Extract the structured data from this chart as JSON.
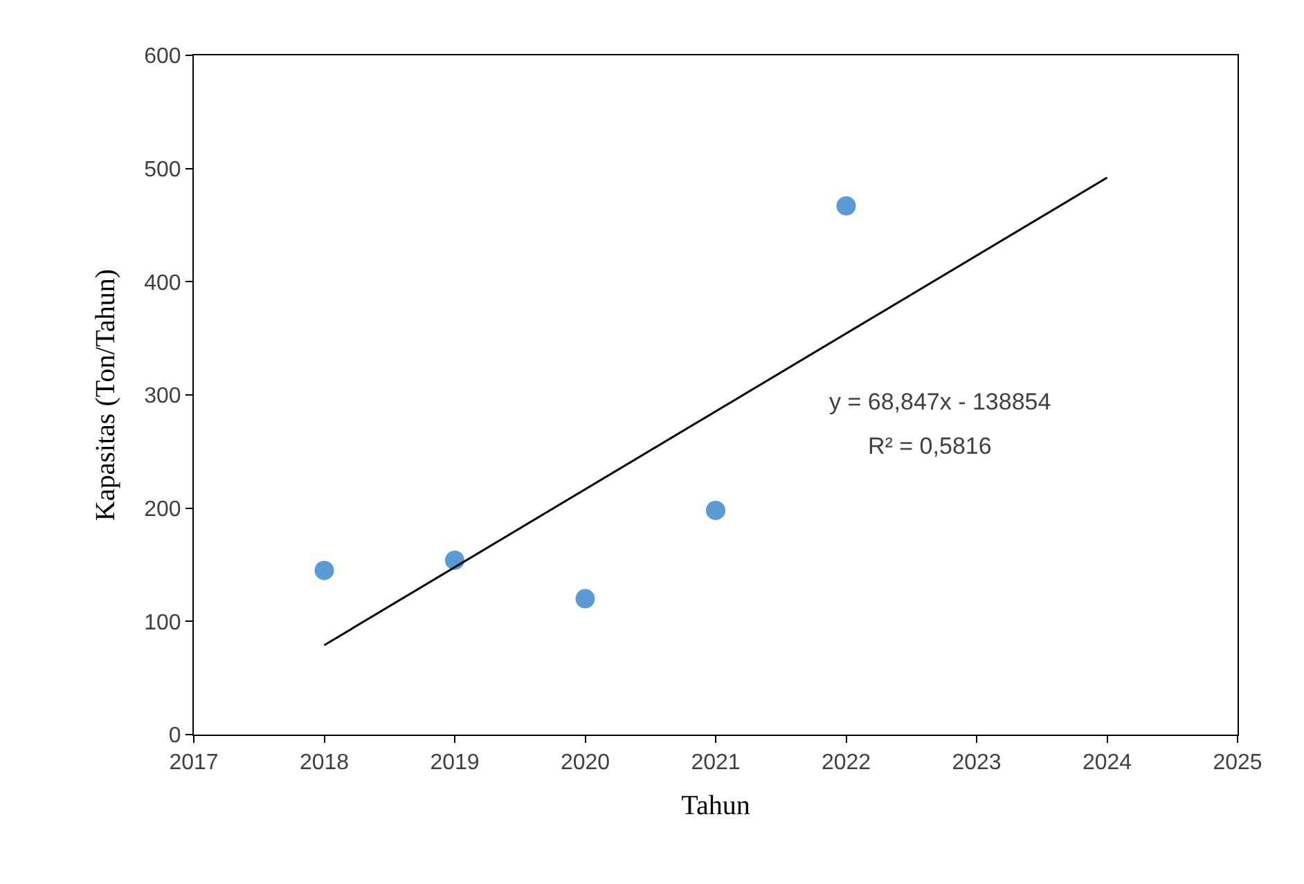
{
  "chart_data": {
    "type": "scatter",
    "xlabel": "Tahun",
    "ylabel": "Kapasitas (Ton/Tahun)",
    "x": [
      2018,
      2019,
      2020,
      2021,
      2022
    ],
    "series": [
      {
        "color": "#5b9bd5",
        "values": [
          145,
          154,
          120,
          198,
          467
        ],
        "marker": "circle"
      },
      {
        "type": "line",
        "color": "#000000",
        "x": [
          2018,
          2024
        ],
        "values": [
          79,
          492
        ],
        "marker": "none",
        "line_style": "solid"
      }
    ],
    "annotations": [
      "y = 68,847x - 138854",
      "R² = 0,5816"
    ],
    "xlim": [
      2017,
      2025
    ],
    "xticks": [
      2017,
      2018,
      2019,
      2020,
      2021,
      2022,
      2023,
      2024,
      2025
    ],
    "ylim": [
      0,
      600
    ],
    "yticks": [
      0,
      100,
      200,
      300,
      400,
      500,
      600
    ],
    "legend": false
  }
}
